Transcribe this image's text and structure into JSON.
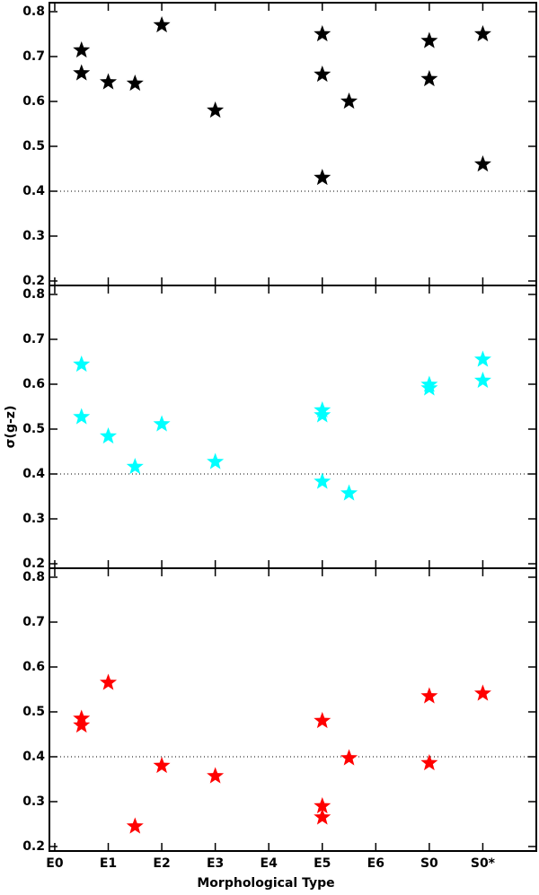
{
  "chart_data": [
    {
      "type": "scatter",
      "color": "#000000",
      "x": [
        0.5,
        0.5,
        1,
        1.5,
        2,
        3,
        5,
        5,
        5,
        5.5,
        7,
        7,
        8,
        8
      ],
      "values": [
        0.714,
        0.663,
        0.643,
        0.64,
        0.77,
        0.58,
        0.75,
        0.66,
        0.43,
        0.6,
        0.735,
        0.65,
        0.75,
        0.46
      ],
      "xlim": [
        -0.1,
        9
      ],
      "xticks": [
        0,
        1,
        2,
        3,
        4,
        5,
        6,
        7,
        8
      ],
      "ylim": [
        0.19,
        0.82
      ],
      "yticks": [
        0.2,
        0.3,
        0.4,
        0.5,
        0.6,
        0.7,
        0.8
      ],
      "hline": 0.4
    },
    {
      "type": "scatter",
      "color": "#00ffff",
      "ylabel": "σ(g-z)",
      "x": [
        0.5,
        0.5,
        1,
        1.5,
        2,
        3,
        5,
        5,
        5,
        5.5,
        7,
        7,
        8,
        8
      ],
      "values": [
        0.644,
        0.527,
        0.484,
        0.416,
        0.511,
        0.427,
        0.542,
        0.531,
        0.383,
        0.357,
        0.599,
        0.591,
        0.655,
        0.608
      ],
      "xlim": [
        -0.1,
        9
      ],
      "xticks": [
        0,
        1,
        2,
        3,
        4,
        5,
        6,
        7,
        8
      ],
      "ylim": [
        0.19,
        0.82
      ],
      "yticks": [
        0.2,
        0.3,
        0.4,
        0.5,
        0.6,
        0.7,
        0.8
      ],
      "hline": 0.4
    },
    {
      "type": "scatter",
      "color": "#ff0000",
      "xlabel": "Morphological Type",
      "x": [
        0.5,
        0.5,
        1,
        1.5,
        2,
        3,
        5,
        5,
        5,
        5.5,
        7,
        7,
        8
      ],
      "values": [
        0.485,
        0.47,
        0.565,
        0.245,
        0.38,
        0.357,
        0.48,
        0.29,
        0.265,
        0.397,
        0.535,
        0.386,
        0.541
      ],
      "xlim": [
        -0.1,
        9
      ],
      "xticks": [
        {
          "value": 0,
          "label": "E0"
        },
        {
          "value": 1,
          "label": "E1"
        },
        {
          "value": 2,
          "label": "E2"
        },
        {
          "value": 3,
          "label": "E3"
        },
        {
          "value": 4,
          "label": "E4"
        },
        {
          "value": 5,
          "label": "E5"
        },
        {
          "value": 6,
          "label": "E6"
        },
        {
          "value": 7,
          "label": "S0"
        },
        {
          "value": 8,
          "label": "S0*"
        }
      ],
      "ylim": [
        0.19,
        0.82
      ],
      "yticks": [
        0.2,
        0.3,
        0.4,
        0.5,
        0.6,
        0.7,
        0.8
      ],
      "hline": 0.4
    }
  ]
}
